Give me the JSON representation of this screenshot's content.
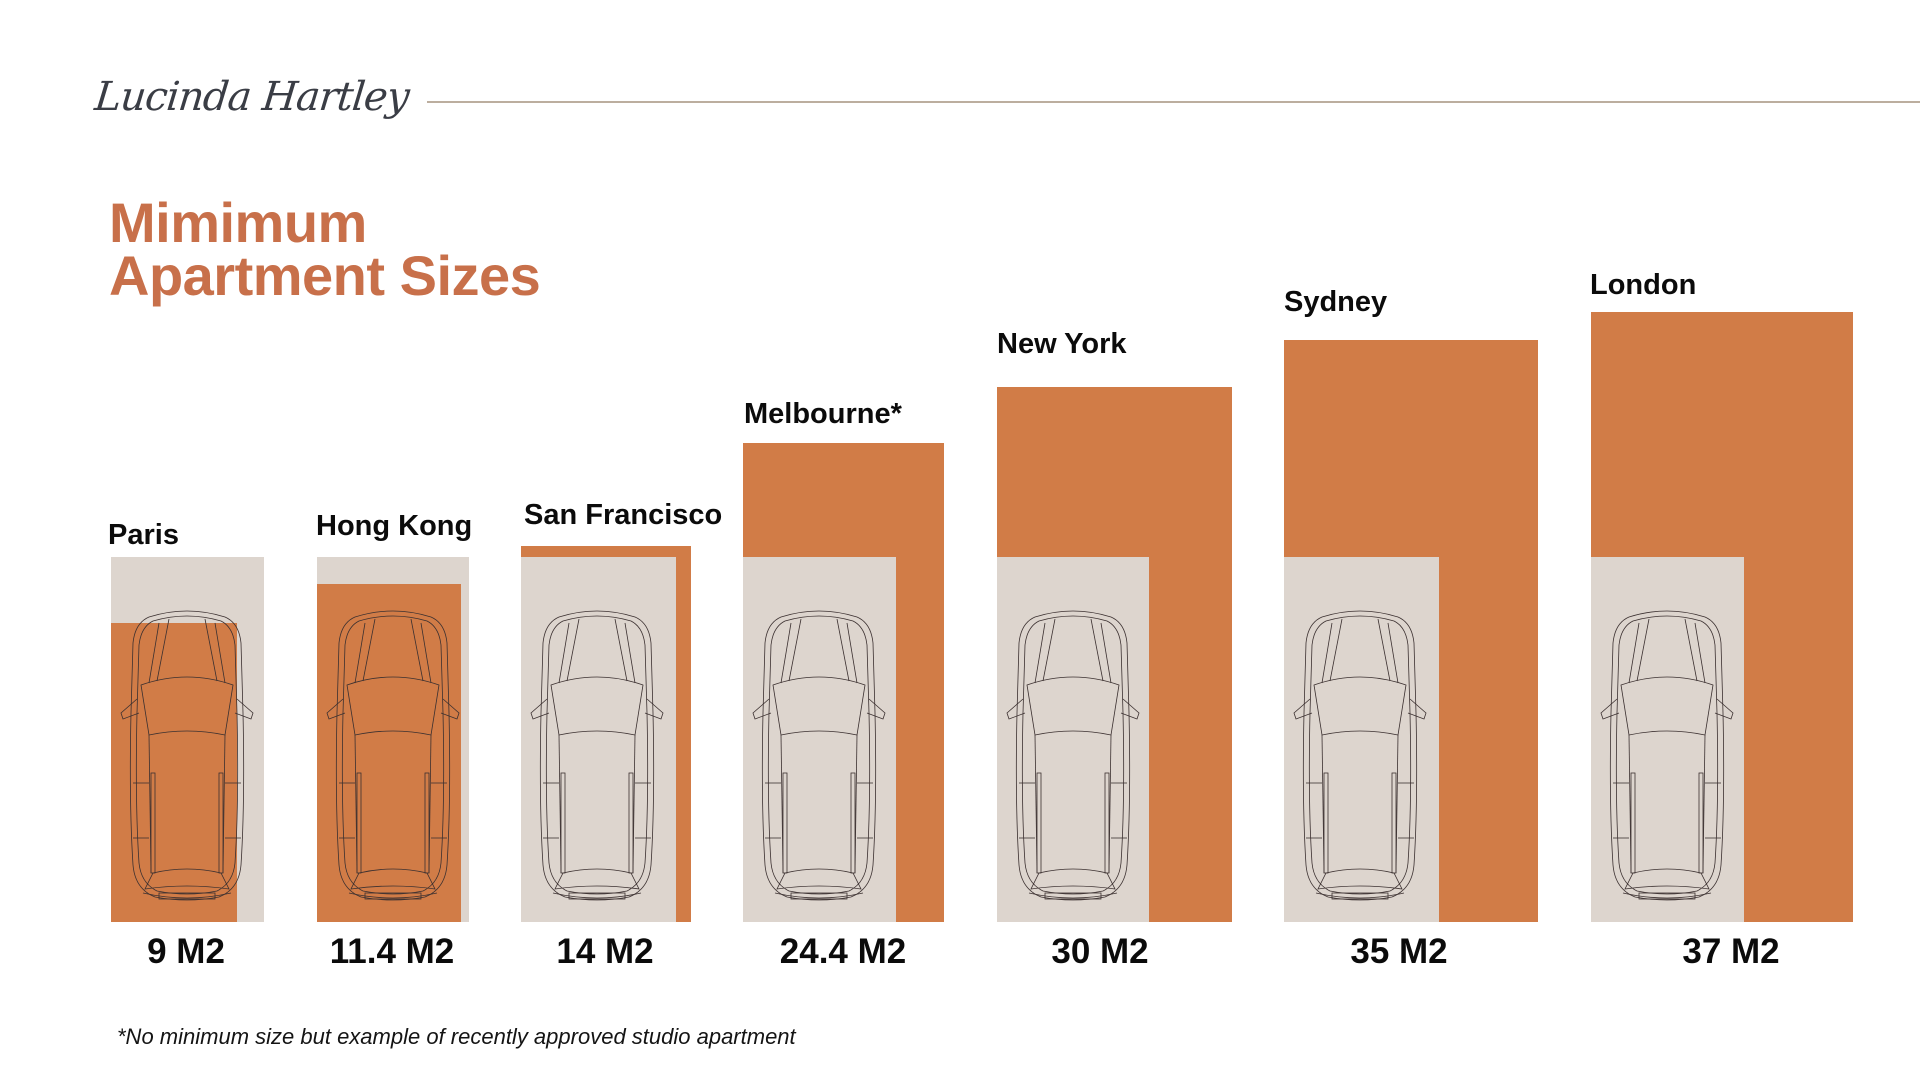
{
  "header": {
    "logo_text": "Lucinda Hartley"
  },
  "title": {
    "line1": "Mimimum",
    "line2": "Apartment Sizes"
  },
  "footnote": "*No minimum size but example of recently approved studio apartment",
  "colors": {
    "apartment_orange": "#d17c47",
    "car_space_gray": "#ddd5ce",
    "title": "#c8704a",
    "rule": "#bcae9f",
    "logo": "#3a3d45"
  },
  "legend_implicit": {
    "orange": "Minimum apartment size",
    "gray": "Car parking space reference (with car outline)"
  },
  "cities": [
    {
      "name": "Paris",
      "value_label": "9 M2"
    },
    {
      "name": "Hong Kong",
      "value_label": "11.4 M2"
    },
    {
      "name": "San Francisco",
      "value_label": "14 M2"
    },
    {
      "name": "Melbourne*",
      "value_label": "24.4 M2"
    },
    {
      "name": "New York",
      "value_label": "30 M2"
    },
    {
      "name": "Sydney",
      "value_label": "35 M2"
    },
    {
      "name": "London",
      "value_label": "37 M2"
    }
  ],
  "chart_data": {
    "type": "bar",
    "title": "Mimimum Apartment Sizes",
    "categories": [
      "Paris",
      "Hong Kong",
      "San Francisco",
      "Melbourne*",
      "New York",
      "Sydney",
      "London"
    ],
    "values": [
      9,
      11.4,
      14,
      24.4,
      30,
      35,
      37
    ],
    "unit": "M2",
    "xlabel": "",
    "ylabel": "",
    "reference": {
      "name": "Car parking space (approx.)",
      "value": 12.5
    },
    "annotations": [
      "*No minimum size but example of recently approved studio apartment"
    ],
    "grid": false,
    "legend": "none"
  }
}
